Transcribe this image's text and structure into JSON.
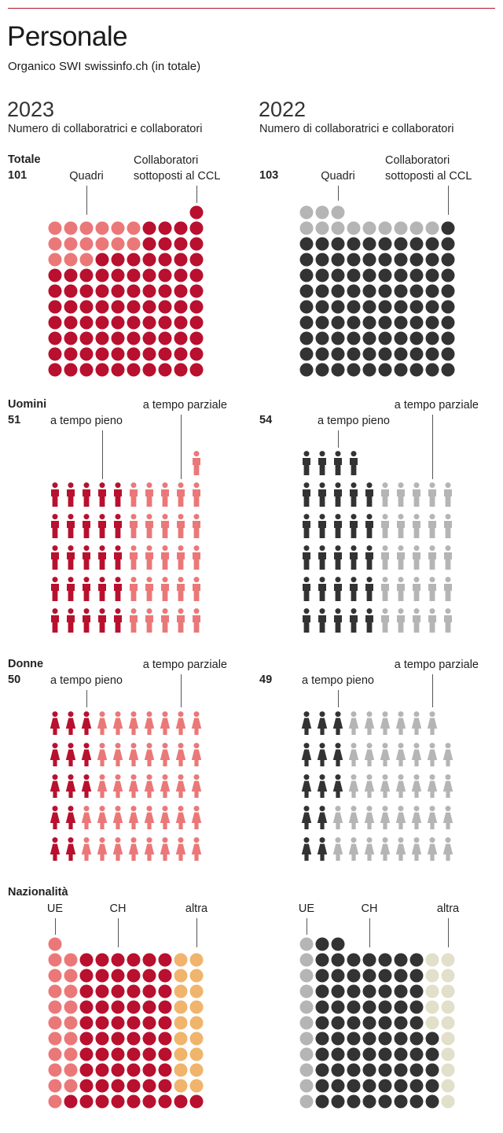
{
  "title": "Personale",
  "subtitle": "Organico SWI swissinfo.ch (in totale)",
  "years": [
    {
      "year": "2023",
      "label": "Numero di collaboratrici e collaboratori"
    },
    {
      "year": "2022",
      "label": "Numero di collaboratrici e collaboratori"
    }
  ],
  "sections": {
    "totale": {
      "label": "Totale",
      "annotations": {
        "quadri": "Quadri",
        "ccl_line1": "Collaboratori",
        "ccl_line2": "sottoposti al CCL"
      }
    },
    "uomini": {
      "label": "Uomini",
      "annotations": {
        "pieno": "a tempo pieno",
        "parziale": "a tempo parziale"
      }
    },
    "donne": {
      "label": "Donne",
      "annotations": {
        "pieno": "a tempo pieno",
        "parziale": "a tempo parziale"
      }
    },
    "nazionalita": {
      "label": "Nazionalità",
      "annotations": {
        "ue": "UE",
        "ch": "CH",
        "altra": "altra"
      }
    }
  },
  "colors": {
    "red": "#b8102e",
    "pink": "#eb7878",
    "dark": "#333333",
    "grey": "#b5b5b5",
    "orange": "#f0b46c",
    "beige": "#e2dfca"
  },
  "chart_data": [
    {
      "type": "waffle",
      "year": "2023",
      "section": "Totale",
      "total": 101,
      "series": [
        {
          "name": "Quadri",
          "value": 15,
          "color": "pink"
        },
        {
          "name": "Collaboratori sottoposti al CCL",
          "value": 86,
          "color": "red"
        }
      ]
    },
    {
      "type": "waffle",
      "year": "2022",
      "section": "Totale",
      "total": 103,
      "series": [
        {
          "name": "Quadri",
          "value": 12,
          "color": "grey"
        },
        {
          "name": "Collaboratori sottoposti al CCL",
          "value": 91,
          "color": "dark"
        }
      ]
    },
    {
      "type": "waffle",
      "year": "2023",
      "section": "Uomini",
      "total": 51,
      "series": [
        {
          "name": "a tempo pieno",
          "value": 25,
          "color": "red"
        },
        {
          "name": "a tempo parziale",
          "value": 26,
          "color": "pink"
        }
      ]
    },
    {
      "type": "waffle",
      "year": "2022",
      "section": "Uomini",
      "total": 54,
      "series": [
        {
          "name": "a tempo pieno",
          "value": 29,
          "color": "dark"
        },
        {
          "name": "a tempo parziale",
          "value": 25,
          "color": "grey"
        }
      ]
    },
    {
      "type": "waffle",
      "year": "2023",
      "section": "Donne",
      "total": 50,
      "series": [
        {
          "name": "a tempo pieno",
          "value": 13,
          "color": "red"
        },
        {
          "name": "a tempo parziale",
          "value": 37,
          "color": "pink"
        }
      ]
    },
    {
      "type": "waffle",
      "year": "2022",
      "section": "Donne",
      "total": 49,
      "series": [
        {
          "name": "a tempo pieno",
          "value": 13,
          "color": "dark"
        },
        {
          "name": "a tempo parziale",
          "value": 36,
          "color": "grey"
        }
      ]
    },
    {
      "type": "waffle",
      "year": "2023",
      "section": "Nazionalità",
      "total": 101,
      "series": [
        {
          "name": "UE",
          "value": 20,
          "color": "pink"
        },
        {
          "name": "CH",
          "value": 63,
          "color": "red"
        },
        {
          "name": "altra",
          "value": 18,
          "color": "orange"
        }
      ]
    },
    {
      "type": "waffle",
      "year": "2022",
      "section": "Nazionalità",
      "total": 103,
      "series": [
        {
          "name": "UE",
          "value": 11,
          "color": "grey"
        },
        {
          "name": "CH",
          "value": 77,
          "color": "dark"
        },
        {
          "name": "altra",
          "value": 15,
          "color": "beige"
        }
      ]
    }
  ]
}
